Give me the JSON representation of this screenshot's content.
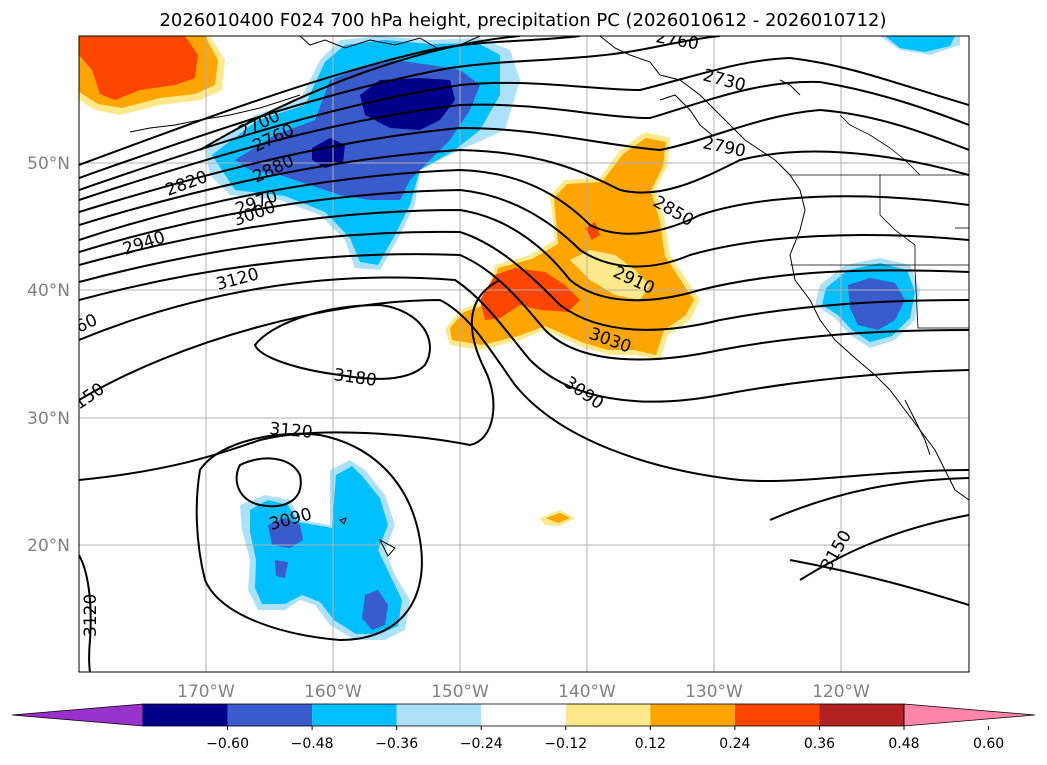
{
  "title": "2026010400 F024 700 hPa height, precipitation PC (2026010612 - 2026010712)",
  "lat_labels": [
    "50°N",
    "40°N",
    "30°N",
    "20°N"
  ],
  "lon_labels": [
    "170°W",
    "160°W",
    "150°W",
    "140°W",
    "130°W",
    "120°W"
  ],
  "colorbar": {
    "ticks": [
      "−0.60",
      "−0.48",
      "−0.36",
      "−0.24",
      "−0.12",
      "0.12",
      "0.24",
      "0.36",
      "0.48",
      "0.60"
    ],
    "colors": [
      "#9932CC",
      "#00008B",
      "#3A5BCC",
      "#00BFFF",
      "#ADE1FA",
      "#FFFFFF",
      "#FFE98A",
      "#FFA500",
      "#FF4500",
      "#B22222",
      "#FF85A8"
    ]
  },
  "contour_labels": {
    "c2760_top": "2760",
    "c2730": "2730",
    "c2790": "2790",
    "c2700": "2700",
    "c2760": "2760",
    "c2880": "2880",
    "c2820": "2820",
    "c2970": "2970",
    "c3000": "3000",
    "c2940": "2940",
    "c3120_n": "3120",
    "c60": "60",
    "c150": "150",
    "c2850": "2850",
    "c2910": "2910",
    "c3030": "3030",
    "c3090_e": "3090",
    "c3180": "3180",
    "c3120_s": "3120",
    "c3090_s": "3090",
    "c3150": "3150",
    "c3120_w": "3120"
  }
}
